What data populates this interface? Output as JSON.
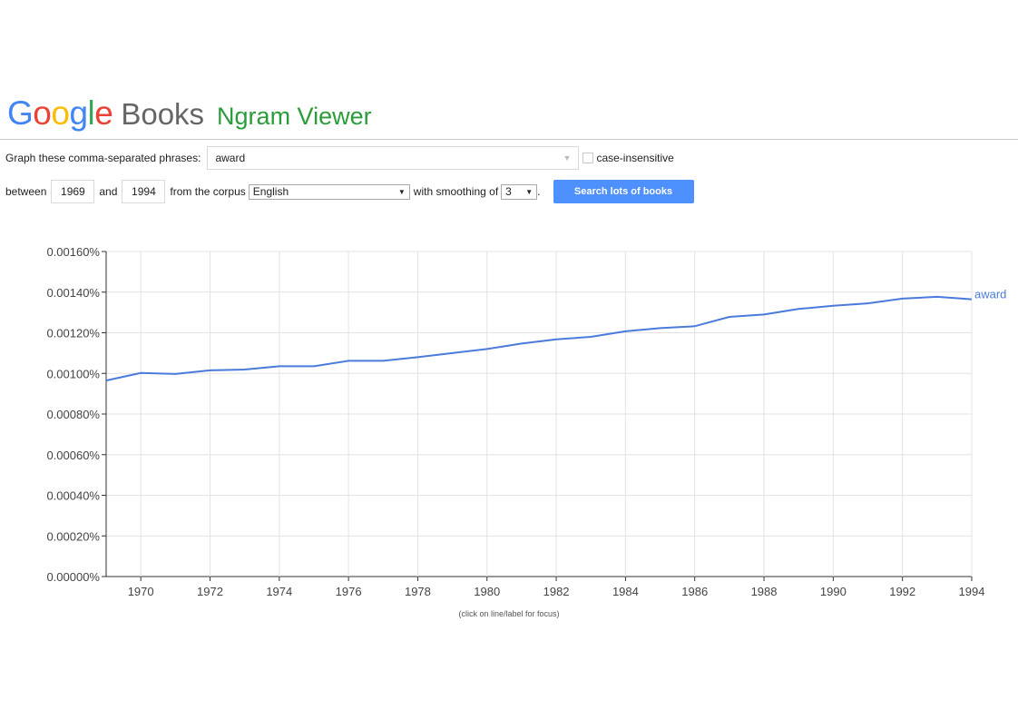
{
  "header": {
    "logo_letters": [
      "G",
      "o",
      "o",
      "g",
      "l",
      "e"
    ],
    "books": "Books",
    "title": "Ngram Viewer"
  },
  "form": {
    "phrases_label": "Graph these comma-separated phrases:",
    "phrases_value": "award",
    "case_insensitive_label": "case-insensitive",
    "between_label": "between",
    "start_year": "1969",
    "and_label": "and",
    "end_year": "1994",
    "corpus_label": "from the corpus",
    "corpus_value": "English",
    "smoothing_label": "with smoothing of",
    "smoothing_value": "3",
    "period": ".",
    "search_button": "Search lots of books"
  },
  "chart_note": "(click on line/label for focus)",
  "chart_data": {
    "type": "line",
    "x": [
      1969,
      1970,
      1971,
      1972,
      1973,
      1974,
      1975,
      1976,
      1977,
      1978,
      1979,
      1980,
      1981,
      1982,
      1983,
      1984,
      1985,
      1986,
      1987,
      1988,
      1989,
      1990,
      1991,
      1992,
      1993,
      1994
    ],
    "series": [
      {
        "name": "award",
        "color": "#4a7bdc",
        "values": [
          0.000965,
          0.001002,
          0.000997,
          0.001015,
          0.001019,
          0.001035,
          0.001035,
          0.001062,
          0.001062,
          0.00108,
          0.0011,
          0.00112,
          0.001147,
          0.001168,
          0.00118,
          0.001207,
          0.001223,
          0.001232,
          0.001278,
          0.00129,
          0.001317,
          0.001333,
          0.001345,
          0.001368,
          0.001377,
          0.001365
        ]
      }
    ],
    "xlim": [
      1969,
      1994
    ],
    "ylim": [
      0,
      0.0016
    ],
    "yticks": [
      "0.00000%",
      "0.00020%",
      "0.00040%",
      "0.00060%",
      "0.00080%",
      "0.00100%",
      "0.00120%",
      "0.00140%",
      "0.00160%"
    ],
    "xticks": [
      "1970",
      "1972",
      "1974",
      "1976",
      "1978",
      "1980",
      "1982",
      "1984",
      "1986",
      "1988",
      "1990",
      "1992",
      "1994"
    ],
    "grid": true
  }
}
